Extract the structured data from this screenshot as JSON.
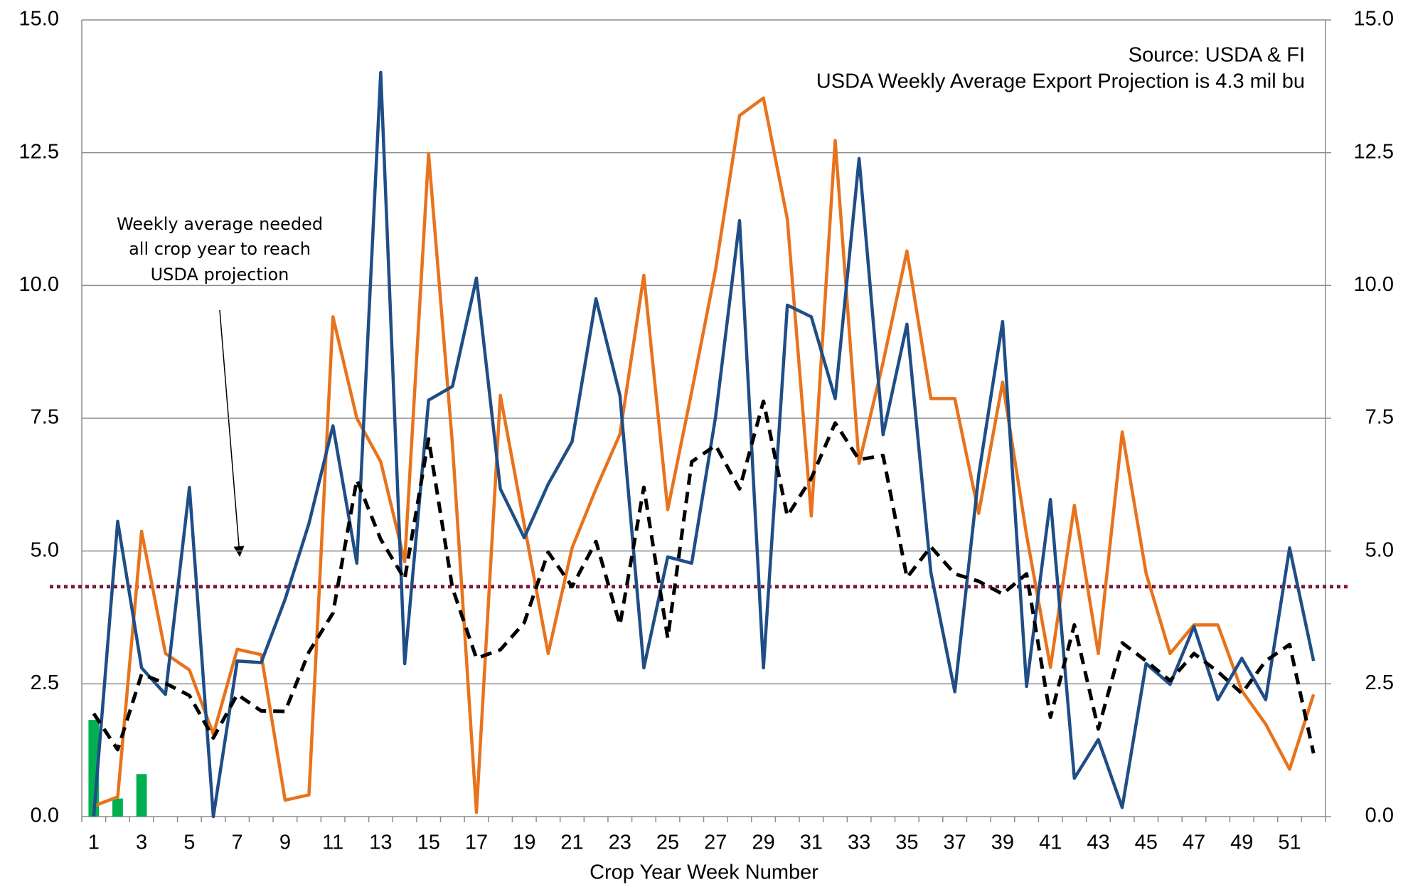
{
  "chart_data": {
    "type": "line",
    "x_label": "Crop Year Week Number",
    "annotations": {
      "source": "Source: USDA & FI",
      "projection": "USDA Weekly Average Export Projection is 4.3 mil bu",
      "arrow_note": [
        "Weekly average needed",
        "all crop year to reach",
        "USDA projection"
      ]
    },
    "categories": [
      1,
      null,
      3,
      null,
      5,
      null,
      7,
      null,
      9,
      null,
      11,
      null,
      13,
      null,
      15,
      null,
      17,
      null,
      19,
      null,
      21,
      null,
      23,
      null,
      25,
      null,
      27,
      null,
      29,
      null,
      31,
      null,
      33,
      null,
      35,
      null,
      37,
      null,
      39,
      null,
      41,
      null,
      43,
      null,
      45,
      null,
      47,
      null,
      49,
      null,
      51,
      null
    ],
    "series": [
      {
        "kind": "bar",
        "color": "#00b050",
        "values": [
          1.82,
          0.34,
          0.8,
          null,
          null,
          null,
          null,
          null,
          null,
          null,
          null,
          null,
          null,
          null,
          null,
          null,
          null,
          null,
          null,
          null,
          null,
          null,
          null,
          null,
          null,
          null,
          null,
          null,
          null,
          null,
          null,
          null,
          null,
          null,
          null,
          null,
          null,
          null,
          null,
          null,
          null,
          null,
          null,
          null,
          null,
          null,
          null,
          null,
          null,
          null,
          null,
          null
        ]
      },
      {
        "kind": "line",
        "color": "#e8731c",
        "dash": "solid",
        "values": [
          0.2,
          0.37,
          5.37,
          3.07,
          2.76,
          1.55,
          3.15,
          3.05,
          0.31,
          0.41,
          9.41,
          7.5,
          6.68,
          4.8,
          12.48,
          7.0,
          0.08,
          7.93,
          5.5,
          3.07,
          5.06,
          6.17,
          7.2,
          10.19,
          5.78,
          8.0,
          10.3,
          13.2,
          13.53,
          11.25,
          5.66,
          12.73,
          6.65,
          8.55,
          10.65,
          7.87,
          7.87,
          5.71,
          8.18,
          5.3,
          2.81,
          5.86,
          3.07,
          7.24,
          4.58,
          3.07,
          3.61,
          3.61,
          2.37,
          1.74,
          0.89,
          2.3
        ]
      },
      {
        "kind": "line",
        "color": "#1f4e87",
        "dash": "solid",
        "values": [
          0.0,
          5.56,
          2.8,
          2.3,
          6.2,
          0.0,
          2.93,
          2.9,
          4.09,
          5.52,
          7.36,
          4.77,
          14.01,
          2.88,
          7.84,
          8.1,
          10.14,
          6.17,
          5.25,
          6.26,
          7.06,
          9.75,
          7.93,
          2.8,
          4.89,
          4.77,
          7.53,
          11.22,
          2.8,
          9.63,
          9.41,
          7.87,
          12.39,
          7.19,
          9.27,
          4.6,
          2.35,
          6.43,
          9.32,
          2.45,
          5.97,
          0.72,
          1.45,
          0.17,
          2.88,
          2.49,
          3.58,
          2.2,
          2.98,
          2.2,
          5.06,
          2.93
        ]
      },
      {
        "kind": "line",
        "color": "#000000",
        "dash": "dashed",
        "values": [
          1.94,
          1.26,
          2.68,
          2.51,
          2.28,
          1.48,
          2.3,
          1.99,
          1.98,
          3.1,
          3.83,
          6.34,
          5.22,
          4.47,
          7.11,
          4.3,
          2.98,
          3.14,
          3.65,
          4.98,
          4.33,
          5.18,
          3.61,
          6.2,
          3.36,
          6.68,
          6.99,
          6.17,
          7.82,
          5.66,
          6.37,
          7.41,
          6.72,
          6.8,
          4.5,
          5.08,
          4.57,
          4.43,
          4.19,
          4.57,
          1.87,
          3.61,
          1.65,
          3.27,
          2.93,
          2.56,
          3.07,
          2.73,
          2.32,
          2.93,
          3.24,
          1.19
        ]
      }
    ],
    "reference_line": {
      "value": 4.33,
      "color": "#7b1a3a"
    },
    "ylim": [
      0,
      15
    ],
    "yticks": [
      {
        "value": 0,
        "label": "0.0"
      },
      {
        "value": 2.5,
        "label": "2.5"
      },
      {
        "value": 5,
        "label": "5.0"
      },
      {
        "value": 7.5,
        "label": "7.5"
      },
      {
        "value": 10,
        "label": "10.0"
      },
      {
        "value": 12.5,
        "label": "12.5"
      },
      {
        "value": 15,
        "label": "15.0"
      }
    ],
    "y2lim": [
      0,
      15
    ],
    "y2ticks": [
      {
        "value": 0,
        "label": "0.0"
      },
      {
        "value": 2.5,
        "label": "2.5"
      },
      {
        "value": 5,
        "label": "5.0"
      },
      {
        "value": 7.5,
        "label": "7.5"
      },
      {
        "value": 10,
        "label": "10.0"
      },
      {
        "value": 12.5,
        "label": "12.5"
      },
      {
        "value": 15,
        "label": "15.0"
      }
    ],
    "grid": true
  }
}
